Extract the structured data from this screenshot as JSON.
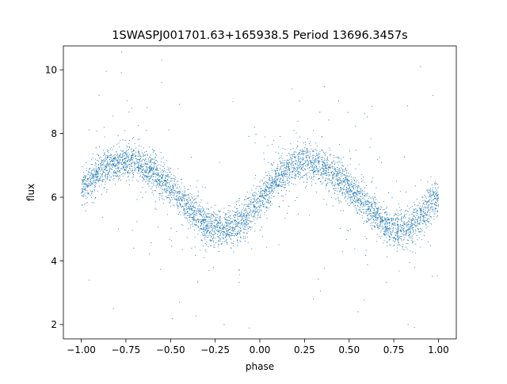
{
  "chart_data": {
    "type": "scatter",
    "title": "1SWASPJ001701.63+165938.5 Period 13696.3457s",
    "xlabel": "phase",
    "ylabel": "flux",
    "xlim": [
      -1.1,
      1.1
    ],
    "ylim": [
      1.55,
      10.75
    ],
    "xticks": [
      -1.0,
      -0.75,
      -0.5,
      -0.25,
      0.0,
      0.25,
      0.5,
      0.75,
      1.0
    ],
    "xtick_labels": [
      "−1.00",
      "−0.75",
      "−0.50",
      "−0.25",
      "0.00",
      "0.25",
      "0.50",
      "0.75",
      "1.00"
    ],
    "yticks": [
      2,
      4,
      6,
      8,
      10
    ],
    "ytick_labels": [
      "2",
      "4",
      "6",
      "8",
      "10"
    ],
    "grid": false,
    "point_color": "#1f77b4",
    "curve": {
      "phase": [
        -1.0,
        -0.9,
        -0.8,
        -0.75,
        -0.7,
        -0.6,
        -0.5,
        -0.4,
        -0.3,
        -0.25,
        -0.2,
        -0.1,
        0.0,
        0.1,
        0.2,
        0.25,
        0.3,
        0.4,
        0.5,
        0.6,
        0.7,
        0.75,
        0.8,
        0.9,
        1.0
      ],
      "flux": [
        6.3,
        6.8,
        7.05,
        7.15,
        7.1,
        6.8,
        6.3,
        5.7,
        5.15,
        5.0,
        4.95,
        5.25,
        5.95,
        6.6,
        7.0,
        7.15,
        7.1,
        6.8,
        6.3,
        5.7,
        5.1,
        4.95,
        5.0,
        5.3,
        6.1
      ]
    },
    "outliers": [
      {
        "phase": -0.86,
        "flux": 9.95
      },
      {
        "phase": -0.9,
        "flux": 9.2
      },
      {
        "phase": -0.55,
        "flux": 9.6
      },
      {
        "phase": -0.15,
        "flux": 9.0
      },
      {
        "phase": 0.18,
        "flux": 9.4
      },
      {
        "phase": 0.9,
        "flux": 10.1
      },
      {
        "phase": 0.97,
        "flux": 9.2
      },
      {
        "phase": -0.82,
        "flux": 2.5
      },
      {
        "phase": -0.45,
        "flux": 2.7
      },
      {
        "phase": -0.2,
        "flux": 2.0
      },
      {
        "phase": 0.3,
        "flux": 2.8
      },
      {
        "phase": 0.55,
        "flux": 2.4
      },
      {
        "phase": 0.83,
        "flux": 2.0
      },
      {
        "phase": -0.55,
        "flux": 10.3
      }
    ]
  }
}
